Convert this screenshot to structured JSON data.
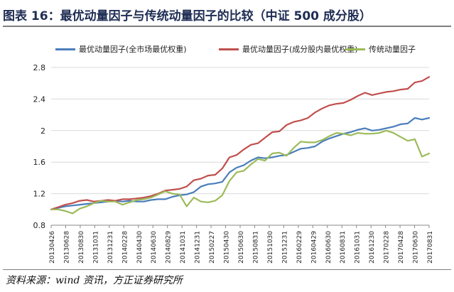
{
  "header": {
    "title": "图表 16：最优动量因子与传统动量因子的比较（中证 500 成分股）"
  },
  "footer": {
    "source": "资料来源：wind 资讯，方正证券研究所"
  },
  "colors": {
    "blue": "#4a7ebb",
    "red": "#c0504d",
    "green": "#9bbb59",
    "grid": "#d9d9d9",
    "axis": "#888888"
  },
  "chart_data": {
    "type": "line",
    "xlabel": "",
    "ylabel": "",
    "ylim": [
      0.8,
      2.8
    ],
    "yticks": [
      0.8,
      1.2,
      1.6,
      2,
      2.4,
      2.8
    ],
    "grid": true,
    "legend_position": "top",
    "x_tick_labels": [
      "20130426",
      "20130628",
      "20130830",
      "20131031",
      "20131231",
      "20140228",
      "20140430",
      "20140630",
      "20140829",
      "20141031",
      "20141231",
      "20150227",
      "20150430",
      "20150630",
      "20150831",
      "20151030",
      "20151231",
      "20160229",
      "20160429",
      "20160630",
      "20160831",
      "20161031",
      "20161230",
      "20170228",
      "20170428",
      "20170630",
      "20170831"
    ],
    "series": [
      {
        "name": "最优动量因子(全市场最优权重)",
        "color": "#4a7ebb",
        "values": [
          1.0,
          1.02,
          1.04,
          1.05,
          1.06,
          1.07,
          1.08,
          1.09,
          1.1,
          1.11,
          1.1,
          1.11,
          1.1,
          1.1,
          1.12,
          1.13,
          1.13,
          1.16,
          1.18,
          1.19,
          1.22,
          1.29,
          1.32,
          1.33,
          1.35,
          1.47,
          1.53,
          1.56,
          1.62,
          1.66,
          1.65,
          1.66,
          1.68,
          1.69,
          1.73,
          1.77,
          1.78,
          1.8,
          1.86,
          1.9,
          1.93,
          1.96,
          1.98,
          2.01,
          2.03,
          2.0,
          2.01,
          2.03,
          2.05,
          2.08,
          2.09,
          2.16,
          2.14,
          2.16
        ]
      },
      {
        "name": "最优动量因子(成分股内最优权重)",
        "color": "#c0504d",
        "values": [
          1.0,
          1.03,
          1.06,
          1.08,
          1.11,
          1.12,
          1.1,
          1.11,
          1.12,
          1.11,
          1.13,
          1.13,
          1.14,
          1.15,
          1.17,
          1.2,
          1.24,
          1.25,
          1.26,
          1.29,
          1.37,
          1.39,
          1.43,
          1.44,
          1.52,
          1.66,
          1.69,
          1.76,
          1.82,
          1.84,
          1.91,
          1.98,
          1.99,
          2.07,
          2.11,
          2.13,
          2.16,
          2.23,
          2.28,
          2.32,
          2.34,
          2.35,
          2.39,
          2.44,
          2.48,
          2.45,
          2.47,
          2.49,
          2.5,
          2.52,
          2.53,
          2.61,
          2.63,
          2.68
        ]
      },
      {
        "name": "传统动量因子",
        "color": "#9bbb59",
        "values": [
          1.0,
          1.0,
          0.98,
          0.95,
          1.01,
          1.04,
          1.08,
          1.11,
          1.1,
          1.1,
          1.06,
          1.09,
          1.12,
          1.13,
          1.15,
          1.19,
          1.23,
          1.2,
          1.19,
          1.04,
          1.15,
          1.1,
          1.09,
          1.11,
          1.18,
          1.36,
          1.47,
          1.49,
          1.57,
          1.64,
          1.62,
          1.71,
          1.72,
          1.68,
          1.78,
          1.86,
          1.85,
          1.85,
          1.88,
          1.93,
          1.97,
          1.96,
          1.94,
          1.97,
          1.96,
          1.96,
          1.97,
          2.0,
          1.97,
          1.92,
          1.87,
          1.89,
          1.67,
          1.71
        ]
      }
    ]
  }
}
